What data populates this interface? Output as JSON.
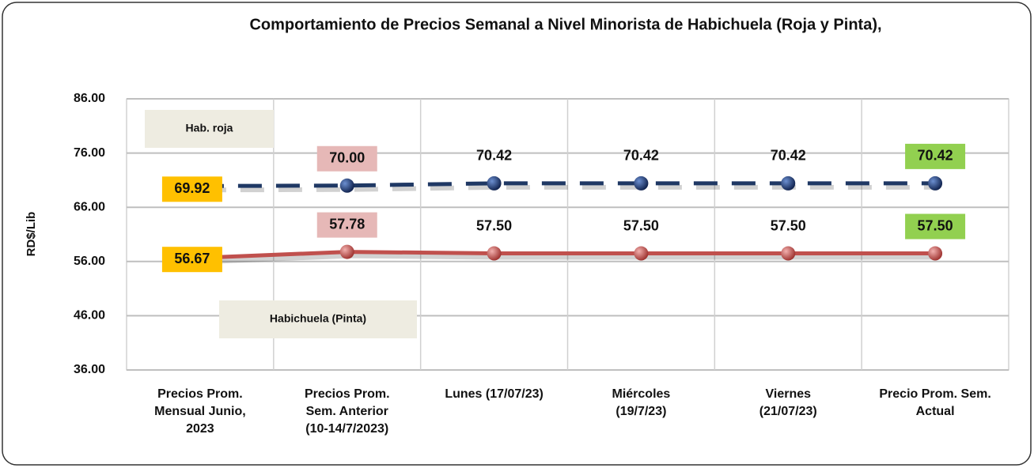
{
  "chart_data": {
    "type": "line",
    "title": "Comportamiento de Precios Semanal a Nivel Minorista de Habichuela (Roja  y Pinta),",
    "y_label": "RD$/Lib",
    "categories": [
      "Precios Prom.\nMensual Junio,\n2023",
      "Precios Prom.\nSem. Anterior\n(10-14/7/2023)",
      "Lunes  (17/07/23)",
      "Miércoles\n(19/7/23)",
      "Viernes\n(21/07/23)",
      "Precio Prom. Sem.\nActual"
    ],
    "series": [
      {
        "name": "Hab. roja",
        "color": "#1f3864",
        "dashed": true,
        "values": [
          69.92,
          70.0,
          70.42,
          70.42,
          70.42,
          70.42
        ],
        "value_labels": [
          "69.92",
          "70.00",
          "70.42",
          "70.42",
          "70.42",
          "70.42"
        ],
        "value_label_fills": [
          "#ffc000",
          "#e6b8b7",
          null,
          null,
          null,
          "#92d050"
        ]
      },
      {
        "name": "Habichuela (Pinta)",
        "color": "#c0504d",
        "dashed": false,
        "values": [
          56.67,
          57.78,
          57.5,
          57.5,
          57.5,
          57.5
        ],
        "value_labels": [
          "56.67",
          "57.78",
          "57.50",
          "57.50",
          "57.50",
          "57.50"
        ],
        "value_label_fills": [
          "#ffc000",
          "#e6b8b7",
          null,
          null,
          null,
          "#92d050"
        ]
      }
    ],
    "ylim": [
      36,
      86
    ],
    "yticks": [
      {
        "value": 36,
        "label": "36.00"
      },
      {
        "value": 46,
        "label": "46.00"
      },
      {
        "value": 56,
        "label": "56.00"
      },
      {
        "value": 66,
        "label": "66.00"
      },
      {
        "value": 76,
        "label": "76.00"
      },
      {
        "value": 86,
        "label": "86.00"
      }
    ],
    "grid": true
  }
}
